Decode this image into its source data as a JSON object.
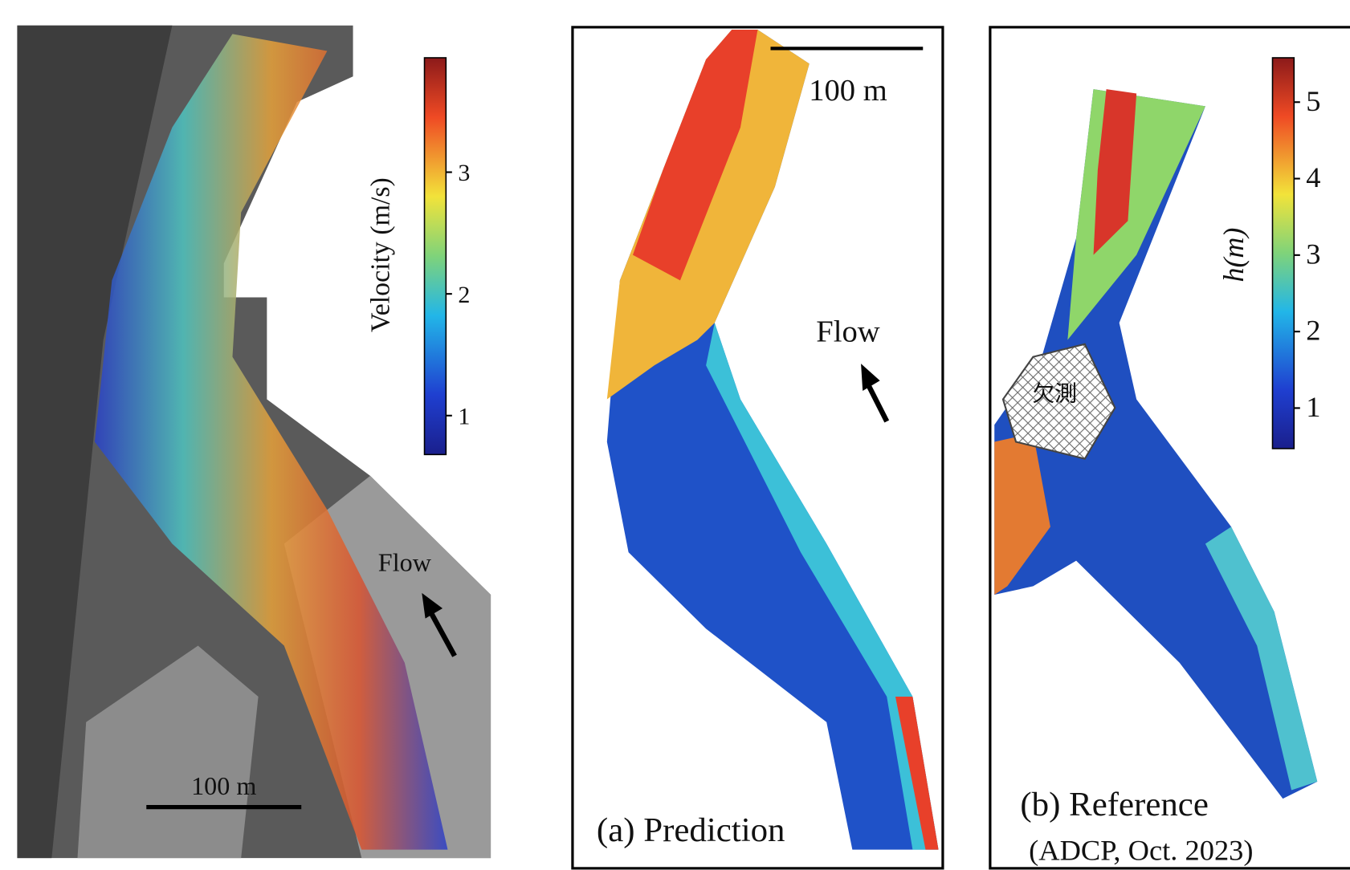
{
  "panels": [
    {
      "colorbar": {
        "label": "Velocity (m/s)",
        "lim": [
          0.68,
          3.94
        ],
        "ticks": [
          1,
          2,
          3
        ]
      },
      "scale_bar": "100 m",
      "flow": "Flow"
    },
    {
      "scale_bar": "100 m",
      "flow": "Flow",
      "caption": "(a) Prediction"
    },
    {
      "colorbar": {
        "label": "h(m)",
        "lim": [
          0.47,
          5.58
        ],
        "ticks": [
          1,
          2,
          3,
          4,
          5
        ]
      },
      "missing": "欠測",
      "caption": "(b) Reference",
      "caption_sub": "(ADCP, Oct. 2023)"
    }
  ]
}
